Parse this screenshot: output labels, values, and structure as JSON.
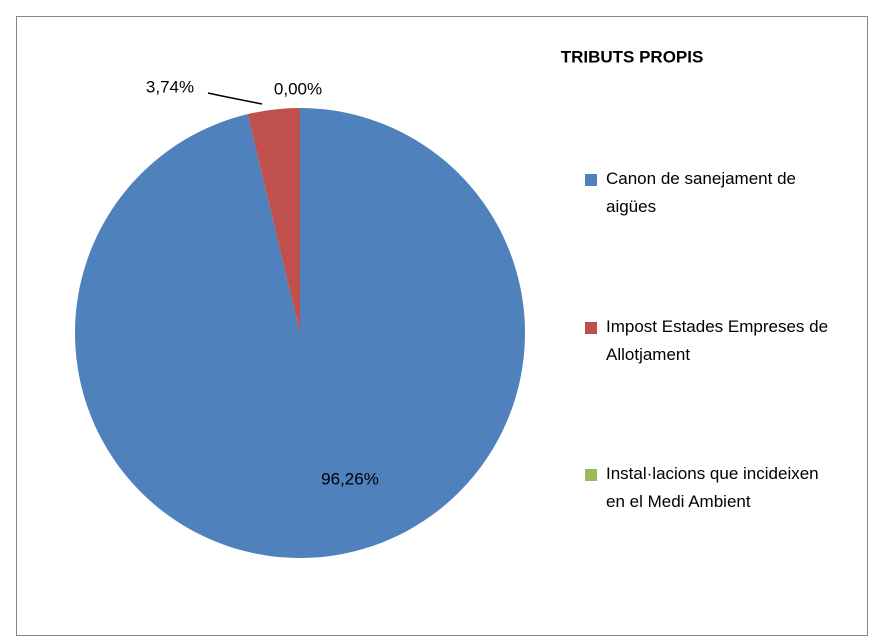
{
  "chart_data": {
    "type": "pie",
    "title": "TRIBUTS PROPIS",
    "categories": [
      "Canon de sanejament de aigües",
      "Impost Estades Empreses de Allotjament",
      "Instal·lacions que incideixen en el Medi Ambient"
    ],
    "values": [
      96.26,
      3.74,
      0.0
    ],
    "value_labels": [
      "96,26%",
      "3,74%",
      "0,00%"
    ],
    "colors": [
      "#4f81bd",
      "#c0504d",
      "#9bbb59"
    ],
    "legend": "right"
  }
}
